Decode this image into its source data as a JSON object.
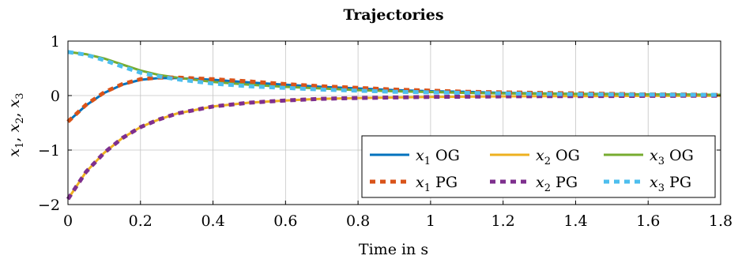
{
  "chart_data": {
    "type": "line",
    "title": "Trajectories",
    "xlabel": "Time in s",
    "ylabel_parts": [
      {
        "var": "x",
        "sub": "1",
        "sep": ", "
      },
      {
        "var": "x",
        "sub": "2",
        "sep": ", "
      },
      {
        "var": "x",
        "sub": "3",
        "sep": ""
      }
    ],
    "xlim": [
      0,
      1.8
    ],
    "ylim": [
      -2,
      1
    ],
    "x_ticks": [
      0,
      0.2,
      0.4,
      0.6,
      0.8,
      1,
      1.2,
      1.4,
      1.6,
      1.8
    ],
    "x_tick_labels": [
      "0",
      "0.2",
      "0.4",
      "0.6",
      "0.8",
      "1",
      "1.2",
      "1.4",
      "1.6",
      "1.8"
    ],
    "y_ticks": [
      -2,
      -1,
      0,
      1
    ],
    "y_tick_labels": [
      "−2",
      "−1",
      "0",
      "1"
    ],
    "grid": true,
    "legend_position": "bottom-right",
    "x": [
      0,
      0.05,
      0.1,
      0.15,
      0.2,
      0.25,
      0.3,
      0.4,
      0.5,
      0.6,
      0.7,
      0.8,
      0.9,
      1.0,
      1.1,
      1.2,
      1.3,
      1.4,
      1.5,
      1.6,
      1.7,
      1.8
    ],
    "series": [
      {
        "name": "OG",
        "var": "x",
        "sub": "1",
        "style": "solid",
        "color": "#0072BD",
        "values": [
          -0.48,
          -0.18,
          0.05,
          0.2,
          0.29,
          0.32,
          0.32,
          0.29,
          0.24,
          0.2,
          0.16,
          0.13,
          0.1,
          0.08,
          0.07,
          0.05,
          0.04,
          0.03,
          0.03,
          0.02,
          0.02,
          0.01
        ]
      },
      {
        "name": "OG",
        "var": "x",
        "sub": "2",
        "style": "solid",
        "color": "#EDB120",
        "values": [
          -1.9,
          -1.4,
          -1.05,
          -0.78,
          -0.58,
          -0.44,
          -0.33,
          -0.2,
          -0.13,
          -0.09,
          -0.06,
          -0.045,
          -0.035,
          -0.025,
          -0.02,
          -0.015,
          -0.012,
          -0.01,
          -0.008,
          -0.006,
          -0.005,
          -0.004
        ]
      },
      {
        "name": "OG",
        "var": "x",
        "sub": "3",
        "style": "solid",
        "color": "#77AC30",
        "values": [
          0.8,
          0.76,
          0.68,
          0.57,
          0.46,
          0.38,
          0.33,
          0.25,
          0.2,
          0.16,
          0.13,
          0.1,
          0.08,
          0.065,
          0.05,
          0.04,
          0.035,
          0.03,
          0.025,
          0.02,
          0.017,
          0.015
        ]
      },
      {
        "name": "PG",
        "var": "x",
        "sub": "1",
        "style": "dashed",
        "color": "#D95319",
        "values": [
          -0.48,
          -0.17,
          0.06,
          0.21,
          0.3,
          0.33,
          0.33,
          0.3,
          0.26,
          0.21,
          0.17,
          0.14,
          0.11,
          0.09,
          0.07,
          0.06,
          0.05,
          0.04,
          0.03,
          0.02,
          0.02,
          0.01
        ]
      },
      {
        "name": "PG",
        "var": "x",
        "sub": "2",
        "style": "dashed",
        "color": "#7E2F8E",
        "values": [
          -1.9,
          -1.4,
          -1.05,
          -0.78,
          -0.58,
          -0.44,
          -0.33,
          -0.2,
          -0.13,
          -0.09,
          -0.06,
          -0.045,
          -0.035,
          -0.025,
          -0.02,
          -0.015,
          -0.012,
          -0.01,
          -0.008,
          -0.006,
          -0.005,
          -0.004
        ]
      },
      {
        "name": "PG",
        "var": "x",
        "sub": "3",
        "style": "dashed",
        "color": "#4DBEEE",
        "values": [
          0.8,
          0.75,
          0.65,
          0.53,
          0.42,
          0.35,
          0.3,
          0.22,
          0.17,
          0.14,
          0.11,
          0.09,
          0.07,
          0.06,
          0.05,
          0.04,
          0.03,
          0.025,
          0.02,
          0.018,
          0.015,
          0.012
        ]
      }
    ]
  }
}
